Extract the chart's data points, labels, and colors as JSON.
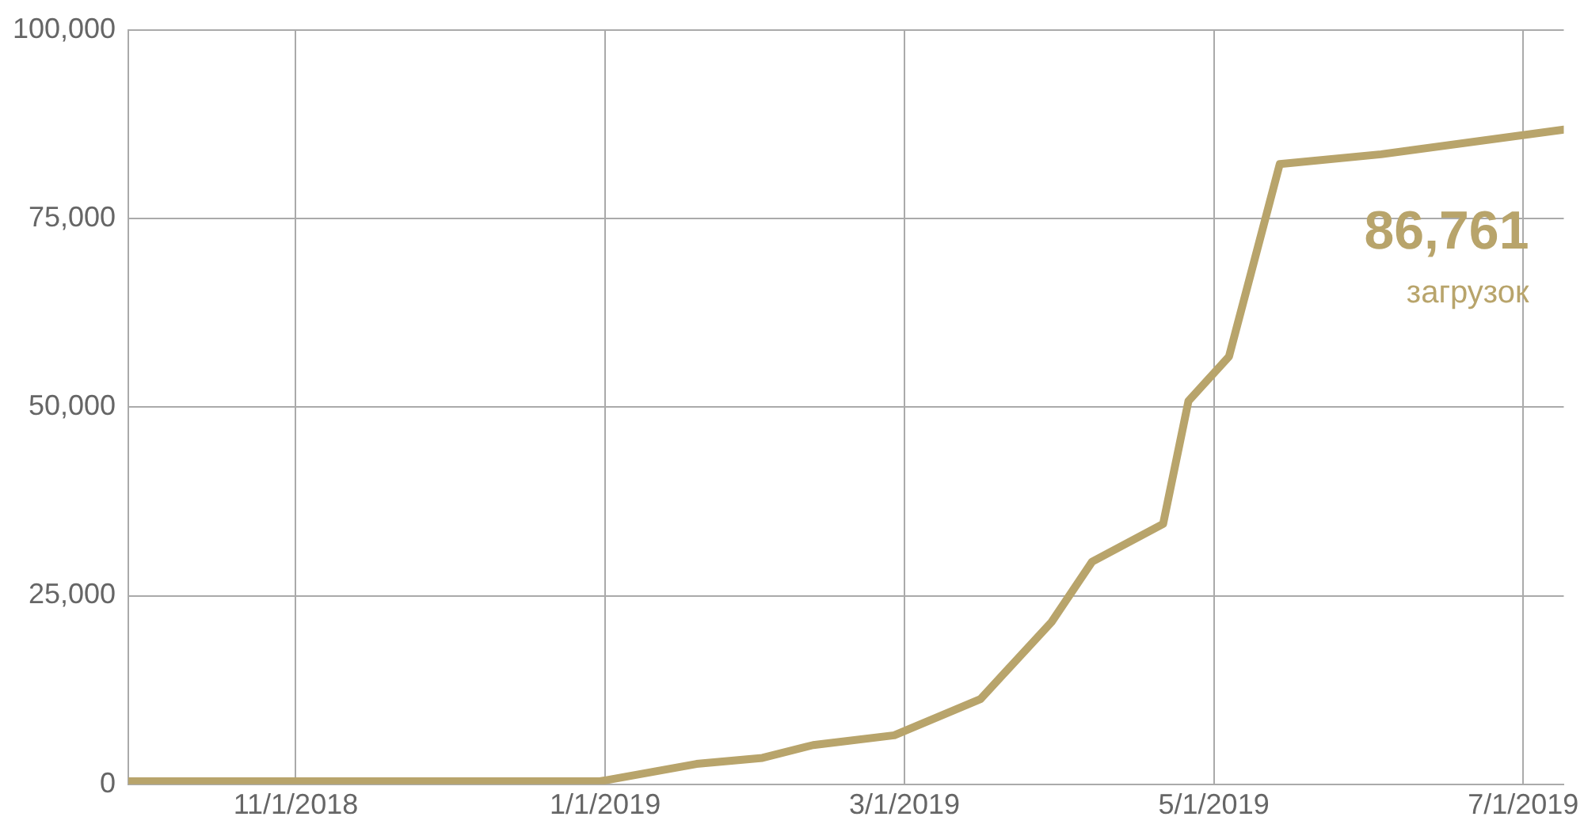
{
  "chart_data": {
    "type": "line",
    "x": [
      "2018-09-29",
      "2018-12-31",
      "2019-01-19",
      "2019-02-01",
      "2019-02-11",
      "2019-02-27",
      "2019-03-16",
      "2019-03-30",
      "2019-04-07",
      "2019-04-21",
      "2019-04-26",
      "2019-05-04",
      "2019-05-14",
      "2019-06-03",
      "2019-07-09"
    ],
    "series": [
      {
        "color": "#b8a46b",
        "values": [
          400,
          400,
          2700,
          3500,
          5200,
          6500,
          11300,
          21500,
          29500,
          34500,
          50800,
          56700,
          82200,
          83500,
          86761
        ]
      }
    ],
    "xlim": [
      "2018-09-29",
      "2019-07-09"
    ],
    "xticks": [
      {
        "value": "2018-11-01",
        "label": "11/1/2018"
      },
      {
        "value": "2019-01-01",
        "label": "1/1/2019"
      },
      {
        "value": "2019-03-01",
        "label": "3/1/2019"
      },
      {
        "value": "2019-05-01",
        "label": "5/1/2019"
      },
      {
        "value": "2019-07-01",
        "label": "7/1/2019"
      }
    ],
    "ylim": [
      0,
      100000
    ],
    "yticks": [
      0,
      {
        "value": 25000,
        "label": "25,000"
      },
      {
        "value": 50000,
        "label": "50,000"
      },
      {
        "value": 75000,
        "label": "75,000"
      },
      {
        "value": 100000,
        "label": "100,000"
      }
    ],
    "grid": true,
    "legend": false,
    "marker": "none",
    "line_style": "solid",
    "annotations": [
      {
        "text": "86,761",
        "x": "2019-07-09",
        "y": 86761
      },
      "загрузок"
    ]
  }
}
